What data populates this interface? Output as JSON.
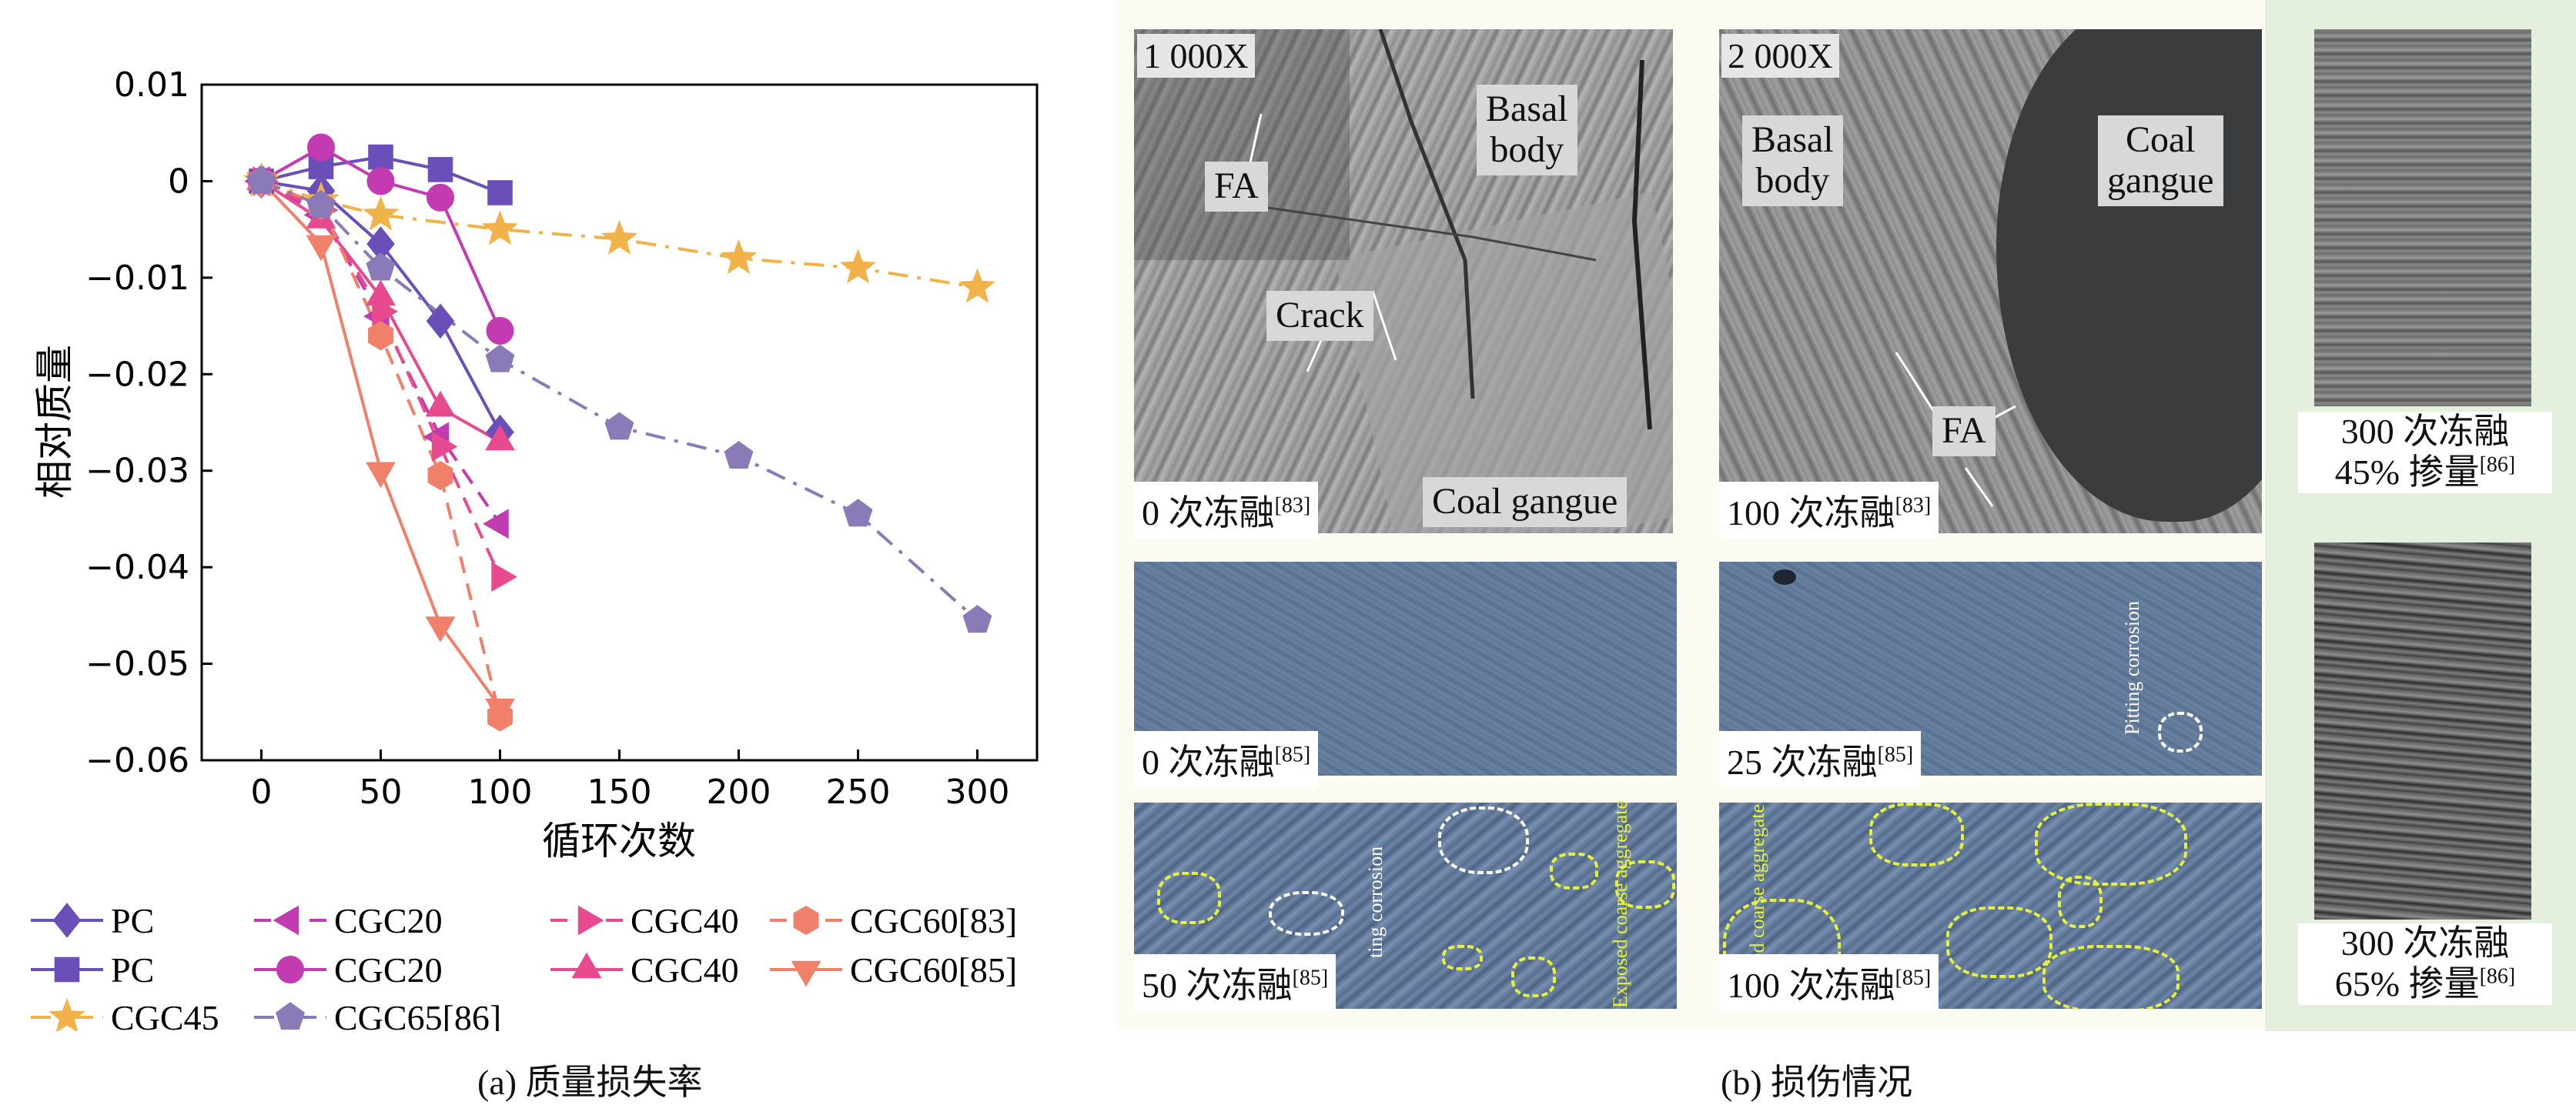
{
  "captions": {
    "a": "(a) 质量损失率",
    "b": "(b) 损伤情况"
  },
  "chart_data": {
    "type": "line",
    "xlabel": "循环次数",
    "ylabel": "相对质量",
    "xlim": [
      -25,
      325
    ],
    "ylim": [
      -0.06,
      0.01
    ],
    "xticks": [
      0,
      50,
      100,
      150,
      200,
      250,
      300
    ],
    "xtick_labels": [
      "0",
      "50",
      "100",
      "150",
      "200",
      "250",
      "300"
    ],
    "yticks": [
      0.01,
      0,
      -0.01,
      -0.02,
      -0.03,
      -0.04,
      -0.05,
      -0.06
    ],
    "ytick_labels": [
      "0.01",
      "0",
      "−0.01",
      "−0.02",
      "−0.03",
      "−0.04",
      "−0.05",
      "−0.06"
    ],
    "grid": false,
    "legend_position": "bottom",
    "series": [
      {
        "name": "PC",
        "marker": "diamond",
        "color": "#6b4fb8",
        "dash": "solid",
        "x": [
          0,
          25,
          50,
          75,
          100
        ],
        "y": [
          0,
          -0.001,
          -0.0065,
          -0.0145,
          -0.026
        ]
      },
      {
        "name": "PC",
        "marker": "square",
        "color": "#6b4fb8",
        "dash": "solid",
        "x": [
          0,
          25,
          50,
          75,
          100
        ],
        "y": [
          0,
          0.0015,
          0.0025,
          0.0012,
          -0.0012
        ]
      },
      {
        "name": "CGC20",
        "marker": "triangle-left",
        "color": "#c23bb1",
        "dash": "dash",
        "x": [
          0,
          25,
          50,
          75,
          100
        ],
        "y": [
          0,
          -0.0035,
          -0.014,
          -0.0265,
          -0.0355
        ]
      },
      {
        "name": "CGC20",
        "marker": "circle",
        "color": "#c23bb1",
        "dash": "solid",
        "x": [
          0,
          25,
          50,
          75,
          100
        ],
        "y": [
          0,
          0.0035,
          0.0,
          -0.0017,
          -0.0155
        ]
      },
      {
        "name": "CGC40",
        "marker": "triangle-right",
        "color": "#e84a8f",
        "dash": "dash",
        "x": [
          0,
          25,
          50,
          75,
          100
        ],
        "y": [
          0,
          -0.003,
          -0.0135,
          -0.0275,
          -0.041
        ]
      },
      {
        "name": "CGC40",
        "marker": "triangle-up",
        "color": "#e84a8f",
        "dash": "solid",
        "x": [
          0,
          25,
          50,
          75,
          100
        ],
        "y": [
          0,
          -0.004,
          -0.012,
          -0.0235,
          -0.027
        ]
      },
      {
        "name": "CGC60[83]",
        "marker": "hexagon",
        "color": "#f0806a",
        "dash": "dash",
        "x": [
          0,
          25,
          50,
          75,
          100
        ],
        "y": [
          0,
          -0.0025,
          -0.016,
          -0.0305,
          -0.0555
        ]
      },
      {
        "name": "CGC60[85]",
        "marker": "triangle-down",
        "color": "#f0806a",
        "dash": "solid",
        "x": [
          0,
          25,
          50,
          75,
          100
        ],
        "y": [
          0,
          -0.0065,
          -0.03,
          -0.046,
          -0.0545
        ]
      },
      {
        "name": "CGC45",
        "marker": "star",
        "color": "#f2b24a",
        "dash": "dashdot",
        "x": [
          0,
          25,
          50,
          100,
          150,
          200,
          250,
          300
        ],
        "y": [
          0,
          -0.002,
          -0.0035,
          -0.005,
          -0.006,
          -0.008,
          -0.009,
          -0.011
        ]
      },
      {
        "name": "CGC65[86]",
        "marker": "pentagon",
        "color": "#8a7ab8",
        "dash": "dashdot",
        "x": [
          0,
          25,
          50,
          100,
          150,
          200,
          250,
          300
        ],
        "y": [
          0,
          -0.0025,
          -0.009,
          -0.0185,
          -0.0255,
          -0.0285,
          -0.0345,
          -0.0455
        ]
      }
    ]
  },
  "panel_b": {
    "sem_left": {
      "magnification": "1 000X",
      "labels": [
        "FA",
        "Basal\nbody",
        "Crack",
        "Coal gangue"
      ],
      "condition": "0 次冻融",
      "ref": "[83]"
    },
    "sem_right": {
      "magnification": "2 000X",
      "labels": [
        "Basal\nbody",
        "Coal\ngangue",
        "FA"
      ],
      "condition": "100 次冻融",
      "ref": "[83]"
    },
    "surface": [
      {
        "condition": "0 次冻融",
        "ref": "[85]",
        "annotation": ""
      },
      {
        "condition": "25 次冻融",
        "ref": "[85]",
        "annotation": "Pitting corrosion"
      },
      {
        "condition": "50 次冻融",
        "ref": "[85]",
        "annotation_1": "ting corrosion",
        "annotation_2": "Exposed coarse aggregate"
      },
      {
        "condition": "100 次冻融",
        "ref": "[85]",
        "annotation": "ed coarse aggregate"
      }
    ],
    "side": [
      {
        "line1": "300 次冻融",
        "line2": "45% 掺量",
        "ref": "[86]"
      },
      {
        "line1": "300 次冻融",
        "line2": "65% 掺量",
        "ref": "[86]"
      }
    ]
  }
}
